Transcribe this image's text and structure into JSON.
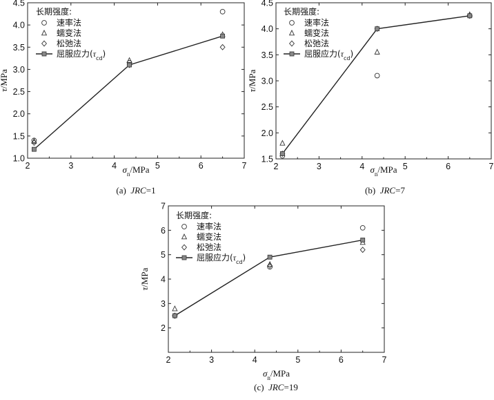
{
  "chart_data": [
    {
      "type": "scatter",
      "panel": "a",
      "caption": "(a)  JRC=1",
      "caption_prefix": "(a)",
      "caption_var": "JRC",
      "caption_val": "=1",
      "xlabel": "σn/MPa",
      "ylabel": "τ/MPa",
      "xlim": [
        2,
        7
      ],
      "ylim": [
        1.0,
        4.5
      ],
      "xticks": [
        2,
        3,
        4,
        5,
        6,
        7
      ],
      "xticklabels": [
        "2",
        "3",
        "4",
        "5",
        "6",
        "7"
      ],
      "yticks": [
        1.0,
        1.5,
        2.0,
        2.5,
        3.0,
        3.5,
        4.0,
        4.5
      ],
      "yticklabels": [
        "1.0",
        "1.5",
        "2.0",
        "2.5",
        "3.0",
        "3.5",
        "4.0",
        "4.5"
      ],
      "legend_title": "长期强度:",
      "legend_position": "top-left",
      "series": [
        {
          "name": "速率法",
          "marker": "circle",
          "x": [
            2.15,
            4.35,
            6.5
          ],
          "y": [
            1.4,
            3.15,
            4.3
          ]
        },
        {
          "name": "蠕变法",
          "marker": "triangle",
          "x": [
            2.15,
            4.35,
            6.5
          ],
          "y": [
            1.38,
            3.2,
            3.78
          ]
        },
        {
          "name": "松弛法",
          "marker": "diamond",
          "x": [
            2.15,
            4.35,
            6.5
          ],
          "y": [
            1.35,
            3.1,
            3.5
          ]
        },
        {
          "name": "屈服应力(τcd)",
          "marker": "square-line",
          "x": [
            2.15,
            4.35,
            6.5
          ],
          "y": [
            1.2,
            3.1,
            3.75
          ]
        }
      ]
    },
    {
      "type": "scatter",
      "panel": "b",
      "caption": "(b)  JRC=7",
      "caption_prefix": "(b)",
      "caption_var": "JRC",
      "caption_val": "=7",
      "xlabel": "σn/MPa",
      "ylabel": "τ/MPa",
      "xlim": [
        2,
        7
      ],
      "ylim": [
        1.5,
        4.5
      ],
      "xticks": [
        2,
        3,
        4,
        5,
        6,
        7
      ],
      "xticklabels": [
        "2",
        "3",
        "4",
        "5",
        "6",
        "7"
      ],
      "yticks": [
        1.5,
        2.0,
        2.5,
        3.0,
        3.5,
        4.0,
        4.5
      ],
      "yticklabels": [
        "1.5",
        "2.0",
        "2.5",
        "3.0",
        "3.5",
        "4.0",
        "4.5"
      ],
      "legend_title": "长期强度:",
      "legend_position": "top-left",
      "series": [
        {
          "name": "速率法",
          "marker": "circle",
          "x": [
            2.15,
            4.35,
            6.5
          ],
          "y": [
            1.56,
            3.1,
            4.25
          ]
        },
        {
          "name": "蠕变法",
          "marker": "triangle",
          "x": [
            2.15,
            4.35,
            6.5
          ],
          "y": [
            1.8,
            3.55,
            4.27
          ]
        },
        {
          "name": "松弛法",
          "marker": "diamond",
          "x": [
            2.15,
            4.35,
            6.5
          ],
          "y": [
            1.6,
            4.0,
            4.25
          ]
        },
        {
          "name": "屈服应力(τcd)",
          "marker": "square-line",
          "x": [
            2.15,
            4.35,
            6.5
          ],
          "y": [
            1.6,
            4.0,
            4.25
          ]
        }
      ]
    },
    {
      "type": "scatter",
      "panel": "c",
      "caption": "(c)  JRC=19",
      "caption_prefix": "(c)",
      "caption_var": "JRC",
      "caption_val": "=19",
      "xlabel": "σn/MPa",
      "ylabel": "τ/MPa",
      "xlim": [
        2,
        7
      ],
      "ylim": [
        1,
        7
      ],
      "xticks": [
        2,
        3,
        4,
        5,
        6,
        7
      ],
      "xticklabels": [
        "2",
        "3",
        "4",
        "5",
        "6",
        "7"
      ],
      "yticks": [
        2,
        3,
        4,
        5,
        6,
        7
      ],
      "yticklabels": [
        "2",
        "3",
        "4",
        "5",
        "6",
        "7"
      ],
      "legend_title": "长期强度:",
      "legend_position": "top-left",
      "series": [
        {
          "name": "速率法",
          "marker": "circle",
          "x": [
            2.15,
            4.35,
            6.5
          ],
          "y": [
            2.5,
            4.5,
            6.1
          ]
        },
        {
          "name": "蠕变法",
          "marker": "triangle",
          "x": [
            2.15,
            4.35,
            6.5
          ],
          "y": [
            2.78,
            4.6,
            5.5
          ]
        },
        {
          "name": "松弛法",
          "marker": "diamond",
          "x": [
            2.15,
            4.35,
            6.5
          ],
          "y": [
            2.5,
            4.55,
            5.2
          ]
        },
        {
          "name": "屈服应力(τcd)",
          "marker": "square-line",
          "x": [
            2.15,
            4.35,
            6.5
          ],
          "y": [
            2.5,
            4.9,
            5.6
          ]
        }
      ]
    }
  ]
}
